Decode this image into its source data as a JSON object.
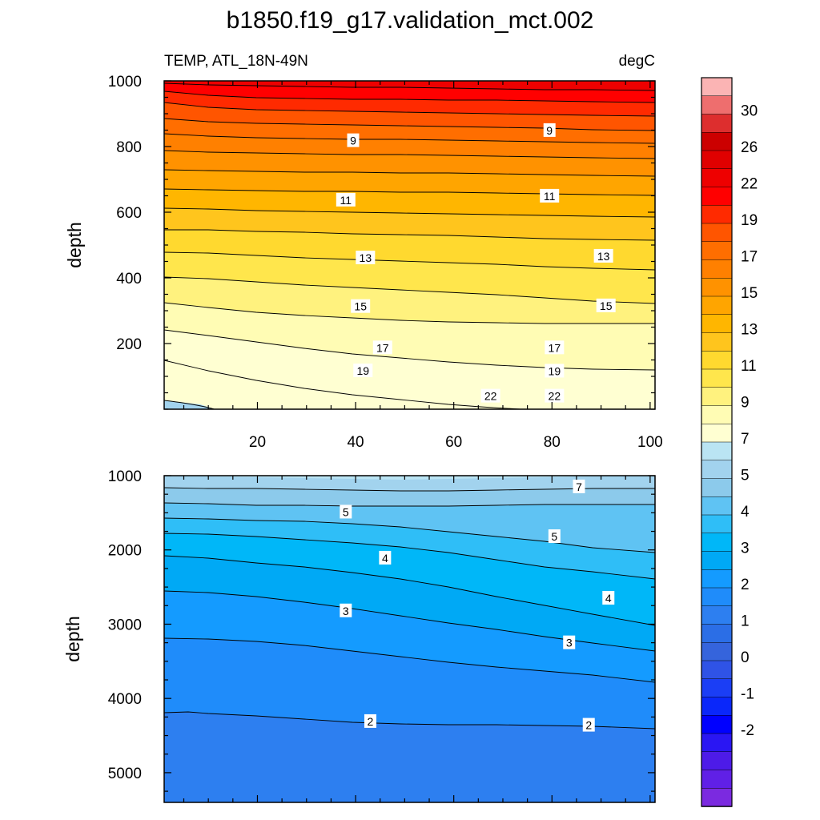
{
  "chart_data": {
    "type": "contour",
    "title": "b1850.f19_g17.validation_mct.002",
    "subtitle_left": "TEMP, ATL_18N-49N",
    "subtitle_right": "degC",
    "xlabel": "",
    "ylabel": "depth",
    "xlim": [
      1,
      101
    ],
    "x_ticks": [
      "20",
      "40",
      "60",
      "80",
      "100"
    ],
    "x_tick_values": [
      20,
      40,
      60,
      80,
      100
    ],
    "colorbar": {
      "ticks": [
        "30",
        "26",
        "22",
        "19",
        "17",
        "15",
        "13",
        "11",
        "9",
        "7",
        "5",
        "4",
        "3",
        "2",
        "1",
        "0",
        "-1",
        "-2"
      ],
      "colors": [
        "#fbb4b4",
        "#ee6e6e",
        "#dd2e2e",
        "#cc0000",
        "#e00000",
        "#ee0000",
        "#ff0000",
        "#ff2a00",
        "#ff5500",
        "#ff6e00",
        "#ff8000",
        "#ff9200",
        "#ffa500",
        "#ffb600",
        "#ffc51d",
        "#ffd92f",
        "#ffe64c",
        "#fff27e",
        "#fffcb4",
        "#ffffd2",
        "#bae4f3",
        "#a2d3ee",
        "#8ccaeb",
        "#5fc3f3",
        "#2fbef7",
        "#00b7f8",
        "#00a9f5",
        "#149bff",
        "#1f8cfa",
        "#2d7ff0",
        "#2b6ee6",
        "#3564dc",
        "#2f53e6",
        "#1b3ef5",
        "#0a27fa",
        "#0000ff",
        "#2a16f3",
        "#4d1be8",
        "#6020e6",
        "#7b2ae0"
      ]
    },
    "panels": [
      {
        "name": "upper",
        "ylim": [
          1000,
          0
        ],
        "y_ticks": [
          "200",
          "400",
          "600",
          "800",
          "1000"
        ],
        "y_tick_values": [
          200,
          400,
          600,
          800,
          1000
        ],
        "contour_labels": [
          {
            "text": "22",
            "x": 67.5,
            "y": 40
          },
          {
            "text": "22",
            "x": 80.5,
            "y": 40
          },
          {
            "text": "19",
            "x": 41.5,
            "y": 117
          },
          {
            "text": "19",
            "x": 80.5,
            "y": 116
          },
          {
            "text": "17",
            "x": 45.5,
            "y": 187
          },
          {
            "text": "17",
            "x": 80.5,
            "y": 187
          },
          {
            "text": "15",
            "x": 41,
            "y": 313
          },
          {
            "text": "15",
            "x": 91,
            "y": 315
          },
          {
            "text": "13",
            "x": 42,
            "y": 461
          },
          {
            "text": "13",
            "x": 90.5,
            "y": 466
          },
          {
            "text": "11",
            "x": 38,
            "y": 637
          },
          {
            "text": "11",
            "x": 79.5,
            "y": 649
          },
          {
            "text": "9",
            "x": 39.5,
            "y": 818
          },
          {
            "text": "9",
            "x": 79.5,
            "y": 849
          }
        ]
      },
      {
        "name": "lower",
        "ylim": [
          1000,
          5400
        ],
        "y_ticks": [
          "1000",
          "2000",
          "3000",
          "4000",
          "5000"
        ],
        "y_tick_values": [
          1000,
          2000,
          3000,
          4000,
          5000
        ],
        "contour_labels": [
          {
            "text": "7",
            "x": 85.5,
            "y": 1150
          },
          {
            "text": "5",
            "x": 38,
            "y": 1490
          },
          {
            "text": "5",
            "x": 80.5,
            "y": 1820
          },
          {
            "text": "4",
            "x": 46,
            "y": 2110
          },
          {
            "text": "4",
            "x": 91.5,
            "y": 2650
          },
          {
            "text": "3",
            "x": 38,
            "y": 2820
          },
          {
            "text": "3",
            "x": 83.5,
            "y": 3250
          },
          {
            "text": "2",
            "x": 43,
            "y": 4310
          },
          {
            "text": "2",
            "x": 87.5,
            "y": 4360
          }
        ]
      }
    ]
  }
}
